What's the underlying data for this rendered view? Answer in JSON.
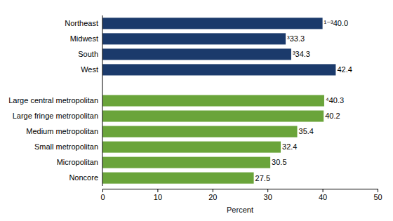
{
  "chart_data": {
    "type": "bar",
    "orientation": "horizontal",
    "categories": [
      "Northeast",
      "Midwest",
      "South",
      "West",
      null,
      "Large central metropolitan",
      "Large fringe metropolitan",
      "Medium metropolitan",
      "Small metropolitan",
      "Micropolitan",
      "Noncore"
    ],
    "values": [
      40.0,
      33.3,
      34.3,
      42.4,
      null,
      40.3,
      40.2,
      35.4,
      32.4,
      30.5,
      27.5
    ],
    "value_labels": [
      "¹⁻³40.0",
      "³33.3",
      "³34.3",
      "42.4",
      null,
      "⁴40.3",
      "40.2",
      "35.4",
      "32.4",
      "30.5",
      "27.5"
    ],
    "colors": [
      "#1b3a6b",
      "#1b3a6b",
      "#1b3a6b",
      "#1b3a6b",
      null,
      "#6aa43a",
      "#6aa43a",
      "#6aa43a",
      "#6aa43a",
      "#6aa43a",
      "#6aa43a"
    ],
    "x_label": "Percent",
    "xlim": [
      0,
      50
    ],
    "xticks": [
      0,
      10,
      20,
      30,
      40,
      50
    ],
    "grid": false,
    "data_labels": true
  }
}
